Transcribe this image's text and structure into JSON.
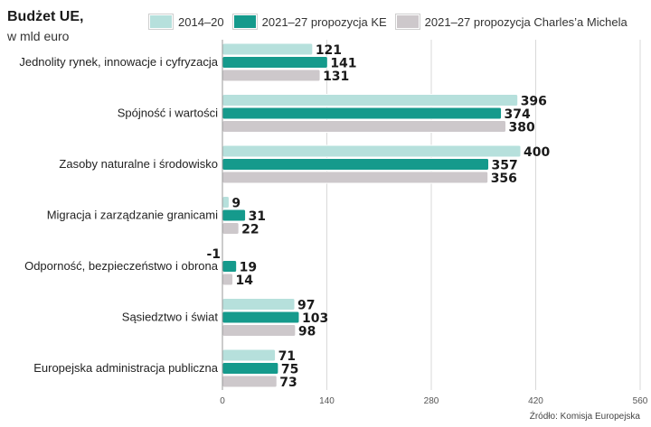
{
  "header": {
    "title": "Budżet UE,",
    "subtitle": "w mld euro"
  },
  "source": "Źródło: Komisja Europejska",
  "colors": {
    "s2014": "#b6e0dc",
    "ske": "#159a8c",
    "scm": "#cdc8cb",
    "grid": "#d9d9d9",
    "axis": "#999999"
  },
  "chart_data": {
    "type": "bar",
    "orientation": "horizontal",
    "title": "Budżet UE,",
    "subtitle": "w mld euro",
    "xlabel": "",
    "ylabel": "",
    "xlim": [
      0,
      560
    ],
    "xticks": [
      0,
      140,
      280,
      420,
      560
    ],
    "categories": [
      "Jednolity rynek, innowacje i cyfryzacja",
      "Spójność i wartości",
      "Zasoby naturalne i środowisko",
      "Migracja i zarządzanie granicami",
      "Odporność, bezpieczeństwo i obrona",
      "Sąsiedztwo i świat",
      "Europejska administracja publiczna"
    ],
    "series": [
      {
        "name": "2014–20",
        "values": [
          121,
          396,
          400,
          9,
          -1,
          97,
          71
        ]
      },
      {
        "name": "2021–27 propozycja KE",
        "values": [
          141,
          374,
          357,
          31,
          19,
          103,
          75
        ]
      },
      {
        "name": "2021–27 propozycja Charles’a Michela",
        "values": [
          131,
          380,
          356,
          22,
          14,
          98,
          73
        ]
      }
    ],
    "legend_position": "top"
  }
}
